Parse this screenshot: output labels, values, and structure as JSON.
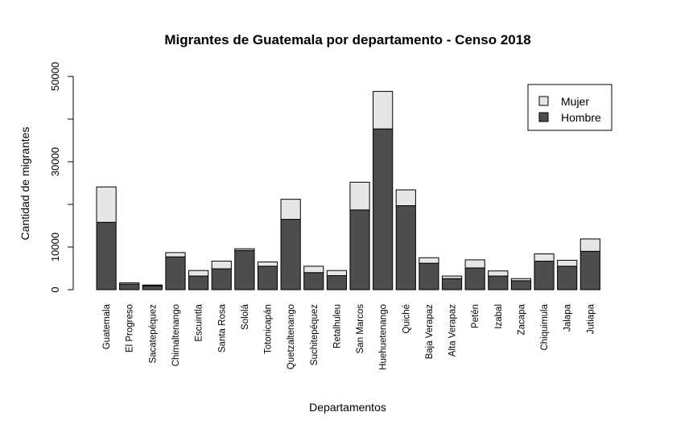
{
  "chart_data": {
    "type": "bar",
    "stacked": true,
    "title": "Migrantes de Guatemala por departamento - Censo 2018",
    "xlabel": "Departamentos",
    "ylabel": "Cantidad de migrantes",
    "ylim": [
      0,
      50000
    ],
    "yticks": [
      0,
      10000,
      30000,
      50000
    ],
    "ytick_labels": [
      "0",
      "10000",
      "30000",
      "50000"
    ],
    "grid": false,
    "legend_position": "top-right",
    "categories": [
      "Guatemala",
      "El Progreso",
      "Sacatepéquez",
      "Chimaltenango",
      "Escuintla",
      "Santa Rosa",
      "Sololá",
      "Totonicapán",
      "Quetzaltenango",
      "Suchitepéquez",
      "Retalhuleu",
      "San Marcos",
      "Huehuetenango",
      "Quiché",
      "Baja Verapaz",
      "Alta Verapaz",
      "Petén",
      "Izabal",
      "Zacapa",
      "Chiquimula",
      "Jalapa",
      "Jutiapa"
    ],
    "series": [
      {
        "name": "Hombre",
        "color": "#4d4d4d",
        "values": [
          15800,
          1300,
          900,
          7700,
          3200,
          4900,
          9200,
          5500,
          16500,
          4000,
          3300,
          18700,
          37700,
          19700,
          6200,
          2600,
          5100,
          3200,
          2100,
          6700,
          5500,
          9000
        ]
      },
      {
        "name": "Mujer",
        "color": "#e6e6e6",
        "values": [
          8300,
          300,
          200,
          1000,
          1300,
          1800,
          400,
          1000,
          4700,
          1500,
          1200,
          6500,
          8800,
          3700,
          1300,
          600,
          1900,
          1200,
          500,
          1700,
          1400,
          2900
        ]
      }
    ],
    "legend_entries": [
      "Mujer",
      "Hombre"
    ]
  }
}
